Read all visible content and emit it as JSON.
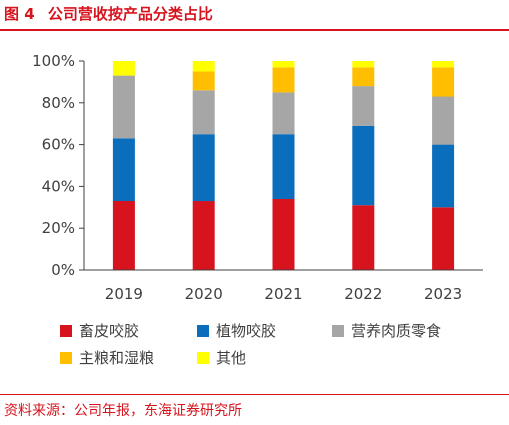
{
  "figure": {
    "number": "图 4",
    "title": "公司营收按产品分类占比",
    "source": "资料来源：公司年报，东海证券研究所"
  },
  "colors": {
    "accent": "#d7141e",
    "series": [
      "#d7141e",
      "#0a6ebd",
      "#a6a6a6",
      "#ffbf00",
      "#ffff00"
    ]
  },
  "chart_data": {
    "type": "bar",
    "stacked": true,
    "categories": [
      "2019",
      "2020",
      "2021",
      "2022",
      "2023"
    ],
    "yticks": [
      "0%",
      "20%",
      "40%",
      "60%",
      "80%",
      "100%"
    ],
    "ylim": [
      0,
      100
    ],
    "grid": false,
    "legend_position": "bottom",
    "series": [
      {
        "name": "畜皮咬胶",
        "values": [
          33,
          33,
          34,
          31,
          30
        ]
      },
      {
        "name": "植物咬胶",
        "values": [
          30,
          32,
          31,
          38,
          30
        ]
      },
      {
        "name": "营养肉质零食",
        "values": [
          30,
          21,
          20,
          19,
          23
        ]
      },
      {
        "name": "主粮和湿粮",
        "values": [
          0,
          9,
          12,
          9,
          14
        ]
      },
      {
        "name": "其他",
        "values": [
          7,
          5,
          3,
          3,
          3
        ]
      }
    ]
  }
}
